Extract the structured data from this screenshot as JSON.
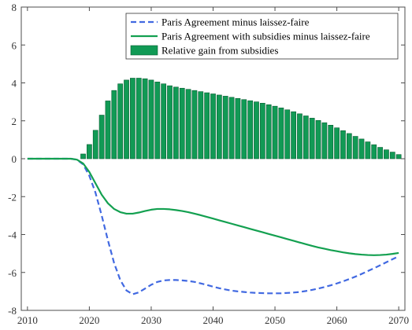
{
  "colors": {
    "bars": "#119a55",
    "bar_edge": "#0b5e33",
    "dashed_line": "#4169e1",
    "solid_line": "#13a050",
    "axis": "#4d4d4d"
  },
  "chart_data": {
    "type": "bar",
    "title": "",
    "xlabel": "",
    "ylabel": "",
    "xlim": [
      2009,
      2071
    ],
    "ylim": [
      -8,
      8
    ],
    "xticks": [
      2010,
      2020,
      2030,
      2040,
      2050,
      2060,
      2070
    ],
    "yticks": [
      -8,
      -6,
      -4,
      -2,
      0,
      2,
      4,
      6,
      8
    ],
    "grid": false,
    "legend_position": "top-right",
    "legend": [
      {
        "label": "Paris Agreement minus laissez-faire",
        "kind": "dashed-line"
      },
      {
        "label": "Paris Agreement with subsidies minus laissez-faire",
        "kind": "solid-line"
      },
      {
        "label": "Relative gain from subsidies",
        "kind": "bar"
      }
    ],
    "bars": {
      "name": "Relative gain from subsidies",
      "x": [
        2019,
        2020,
        2021,
        2022,
        2023,
        2024,
        2025,
        2026,
        2027,
        2028,
        2029,
        2030,
        2031,
        2032,
        2033,
        2034,
        2035,
        2036,
        2037,
        2038,
        2039,
        2040,
        2041,
        2042,
        2043,
        2044,
        2045,
        2046,
        2047,
        2048,
        2049,
        2050,
        2051,
        2052,
        2053,
        2054,
        2055,
        2056,
        2057,
        2058,
        2059,
        2060,
        2061,
        2062,
        2063,
        2064,
        2065,
        2066,
        2067,
        2068,
        2069,
        2070
      ],
      "values": [
        0.25,
        0.75,
        1.5,
        2.3,
        3.05,
        3.6,
        3.95,
        4.15,
        4.25,
        4.25,
        4.22,
        4.15,
        4.05,
        3.95,
        3.85,
        3.78,
        3.72,
        3.66,
        3.6,
        3.54,
        3.48,
        3.42,
        3.36,
        3.3,
        3.24,
        3.18,
        3.12,
        3.06,
        3.0,
        2.93,
        2.85,
        2.77,
        2.68,
        2.58,
        2.48,
        2.37,
        2.26,
        2.14,
        2.02,
        1.9,
        1.77,
        1.63,
        1.48,
        1.33,
        1.18,
        1.04,
        0.89,
        0.74,
        0.6,
        0.47,
        0.35,
        0.22
      ]
    },
    "series": [
      {
        "name": "Paris Agreement minus laissez-faire",
        "style": "dashed",
        "x": [
          2010,
          2017,
          2018,
          2019,
          2020,
          2021,
          2022,
          2023,
          2024,
          2025,
          2026,
          2027,
          2028,
          2029,
          2030,
          2031,
          2032,
          2033,
          2034,
          2035,
          2036,
          2037,
          2038,
          2039,
          2040,
          2041,
          2042,
          2043,
          2044,
          2045,
          2046,
          2047,
          2048,
          2049,
          2050,
          2051,
          2052,
          2053,
          2054,
          2055,
          2056,
          2057,
          2058,
          2059,
          2060,
          2061,
          2062,
          2063,
          2064,
          2065,
          2066,
          2067,
          2068,
          2069,
          2070
        ],
        "y": [
          0,
          0,
          -0.05,
          -0.3,
          -0.9,
          -1.8,
          -3.0,
          -4.3,
          -5.5,
          -6.4,
          -6.95,
          -7.15,
          -7.05,
          -6.85,
          -6.65,
          -6.5,
          -6.42,
          -6.4,
          -6.4,
          -6.42,
          -6.45,
          -6.5,
          -6.58,
          -6.66,
          -6.75,
          -6.83,
          -6.9,
          -6.96,
          -7.0,
          -7.03,
          -7.06,
          -7.08,
          -7.09,
          -7.1,
          -7.1,
          -7.1,
          -7.08,
          -7.06,
          -7.03,
          -6.98,
          -6.92,
          -6.85,
          -6.77,
          -6.68,
          -6.58,
          -6.47,
          -6.35,
          -6.22,
          -6.08,
          -5.93,
          -5.78,
          -5.62,
          -5.46,
          -5.3,
          -5.15
        ]
      },
      {
        "name": "Paris Agreement with subsidies minus laissez-faire",
        "style": "solid",
        "x": [
          2010,
          2017,
          2018,
          2019,
          2020,
          2021,
          2022,
          2023,
          2024,
          2025,
          2026,
          2027,
          2028,
          2029,
          2030,
          2031,
          2032,
          2033,
          2034,
          2035,
          2036,
          2037,
          2038,
          2039,
          2040,
          2041,
          2042,
          2043,
          2044,
          2045,
          2046,
          2047,
          2048,
          2049,
          2050,
          2051,
          2052,
          2053,
          2054,
          2055,
          2056,
          2057,
          2058,
          2059,
          2060,
          2061,
          2062,
          2063,
          2064,
          2065,
          2066,
          2067,
          2068,
          2069,
          2070
        ],
        "y": [
          0,
          0,
          -0.05,
          -0.25,
          -0.7,
          -1.3,
          -1.9,
          -2.35,
          -2.65,
          -2.82,
          -2.9,
          -2.9,
          -2.84,
          -2.76,
          -2.69,
          -2.65,
          -2.65,
          -2.67,
          -2.71,
          -2.76,
          -2.82,
          -2.9,
          -2.98,
          -3.07,
          -3.16,
          -3.25,
          -3.34,
          -3.43,
          -3.52,
          -3.61,
          -3.7,
          -3.79,
          -3.88,
          -3.97,
          -4.06,
          -4.15,
          -4.24,
          -4.33,
          -4.42,
          -4.51,
          -4.6,
          -4.68,
          -4.75,
          -4.82,
          -4.88,
          -4.94,
          -4.99,
          -5.03,
          -5.06,
          -5.08,
          -5.09,
          -5.08,
          -5.06,
          -5.02,
          -4.97
        ]
      }
    ]
  }
}
